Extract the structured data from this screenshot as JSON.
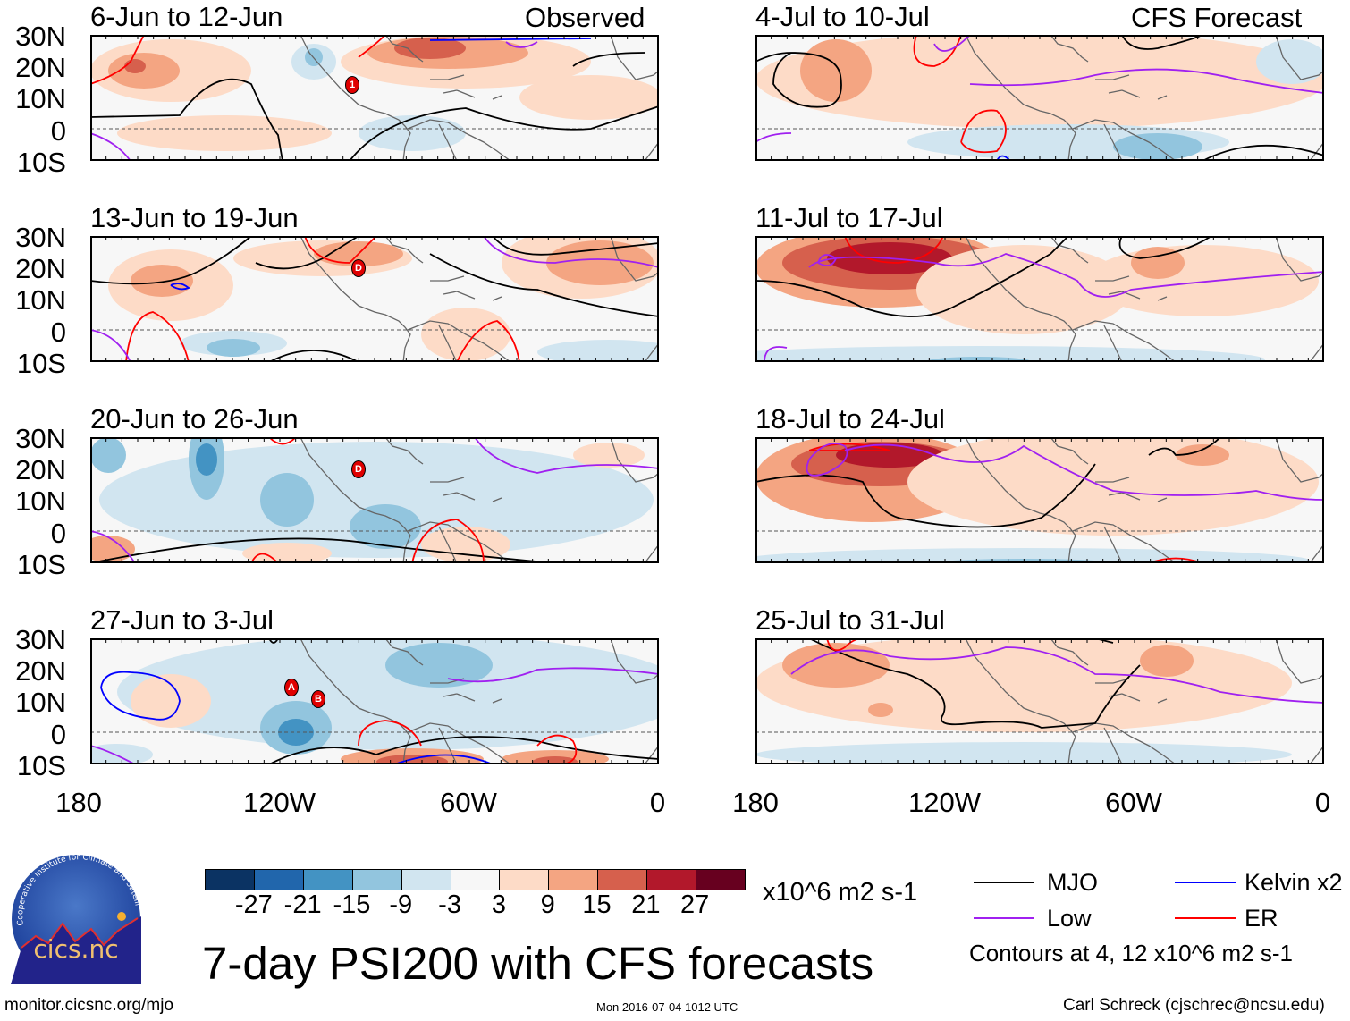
{
  "header": {
    "observed_label": "Observed",
    "forecast_label": "CFS Forecast"
  },
  "panels": {
    "observed": [
      "6-Jun to 12-Jun",
      "13-Jun to 19-Jun",
      "20-Jun to 26-Jun",
      "27-Jun to 3-Jul"
    ],
    "forecast": [
      "4-Jul to 10-Jul",
      "11-Jul to 17-Jul",
      "18-Jul to 24-Jul",
      "25-Jul to 31-Jul"
    ]
  },
  "storm_markers": [
    {
      "panel": "6-Jun to 12-Jun",
      "label": "1"
    },
    {
      "panel": "13-Jun to 19-Jun",
      "label": "D"
    },
    {
      "panel": "20-Jun to 26-Jun",
      "label": "D"
    },
    {
      "panel": "27-Jun to 3-Jul",
      "label": "A"
    },
    {
      "panel": "27-Jun to 3-Jul",
      "label": "B"
    }
  ],
  "chart_data": {
    "type": "heatmap",
    "title": "7-day PSI200 with CFS forecasts",
    "variable": "PSI200 anomaly",
    "units": "x10^6 m2 s-1",
    "lat_ticks": [
      "30N",
      "20N",
      "10N",
      "0",
      "10S"
    ],
    "lon_ticks": [
      "180",
      "120W",
      "60W",
      "0"
    ],
    "lat_range": [
      -10,
      30
    ],
    "lon_range": [
      -180,
      0
    ],
    "colorbar": {
      "ticks": [
        "-27",
        "-21",
        "-15",
        "-9",
        "-3",
        "3",
        "9",
        "15",
        "21",
        "27"
      ],
      "colors": [
        "#0b3363",
        "#2166ac",
        "#4393c3",
        "#92c5de",
        "#d1e5f0",
        "#f7f7f7",
        "#fddbc7",
        "#f4a582",
        "#d6604d",
        "#b2182b",
        "#67001f"
      ]
    },
    "legend": {
      "items": [
        {
          "label": "MJO",
          "color": "#000000"
        },
        {
          "label": "Kelvin x2",
          "color": "#0000ff"
        },
        {
          "label": "Low",
          "color": "#a020f0"
        },
        {
          "label": "ER",
          "color": "#ff0000"
        }
      ],
      "note": "Contours at 4, 12 x10^6 m2 s-1"
    }
  },
  "footer": {
    "url": "monitor.cicsnc.org/mjo",
    "timestamp": "Mon 2016-07-04 1012 UTC",
    "author": "Carl Schreck (cjschrec@ncsu.edu)"
  },
  "logo": {
    "text": "cics.nc",
    "ring_text": "Cooperative Institute for Climate and Satellites"
  }
}
